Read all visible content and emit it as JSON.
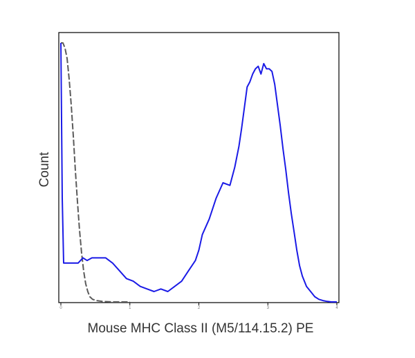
{
  "chart_data": {
    "type": "line",
    "title": "",
    "xlabel": "Mouse MHC Class II (M5/114.15.2) PE",
    "ylabel": "Count",
    "x_scale": "log",
    "xlim": [
      0,
      4
    ],
    "ylim": [
      0,
      100
    ],
    "x_ticks": [
      "0",
      "1",
      "2",
      "3",
      "4"
    ],
    "grid": false,
    "legend": "none",
    "series": [
      {
        "style": "gray",
        "color": "#5a5a5a",
        "x": [
          0.0,
          0.03,
          0.06,
          0.09,
          0.12,
          0.15,
          0.18,
          0.21,
          0.24,
          0.27,
          0.3,
          0.33,
          0.36,
          0.39,
          0.42,
          0.46,
          0.52,
          0.6,
          0.75,
          0.85,
          1.0
        ],
        "y": [
          100,
          100,
          98,
          94,
          86,
          76,
          64,
          51,
          39,
          28,
          19,
          12,
          7,
          4,
          2,
          1,
          0.5,
          0.2,
          0,
          0,
          0
        ]
      },
      {
        "style": "blue",
        "color": "#1a1ae6",
        "x": [
          0.0,
          0.02,
          0.04,
          0.08,
          0.15,
          0.25,
          0.32,
          0.38,
          0.45,
          0.55,
          0.65,
          0.75,
          0.85,
          0.95,
          1.05,
          1.15,
          1.25,
          1.35,
          1.45,
          1.55,
          1.65,
          1.75,
          1.85,
          1.95,
          2.0,
          2.05,
          2.15,
          2.25,
          2.35,
          2.45,
          2.52,
          2.58,
          2.62,
          2.66,
          2.7,
          2.74,
          2.78,
          2.82,
          2.86,
          2.9,
          2.94,
          2.98,
          3.02,
          3.06,
          3.1,
          3.14,
          3.18,
          3.22,
          3.26,
          3.3,
          3.34,
          3.38,
          3.42,
          3.46,
          3.5,
          3.56,
          3.62,
          3.68,
          3.74,
          3.8,
          3.86,
          3.92,
          3.97,
          4.0
        ],
        "y": [
          100,
          40,
          15,
          15,
          15,
          15,
          17,
          16,
          17,
          17,
          17,
          15,
          12,
          9,
          8,
          6,
          5,
          4,
          5,
          4,
          6,
          8,
          12,
          16,
          20,
          26,
          32,
          40,
          46,
          45,
          52,
          60,
          67,
          75,
          83,
          85,
          88,
          90,
          91,
          88,
          92,
          90,
          90,
          89,
          84,
          76,
          68,
          59,
          51,
          42,
          34,
          27,
          20,
          14,
          10,
          6,
          4,
          2,
          1,
          0.5,
          0.2,
          0,
          0,
          0
        ]
      }
    ]
  }
}
